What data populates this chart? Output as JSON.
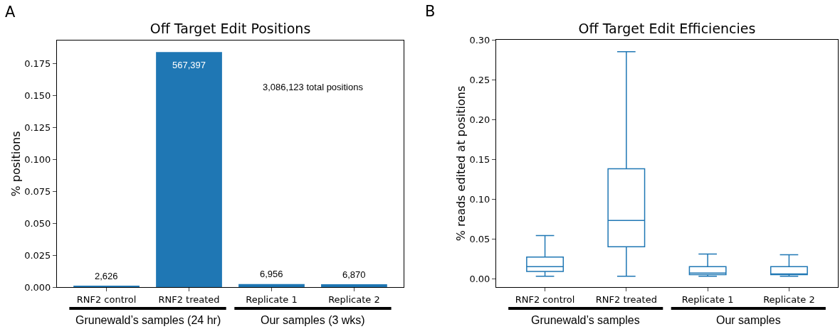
{
  "chart_data": [
    {
      "type": "bar",
      "title": "Off Target Edit Positions",
      "ylabel": "% positions",
      "categories": [
        "RNF2 control",
        "RNF2 treated",
        "Replicate 1",
        "Replicate 2"
      ],
      "values": [
        0.0009,
        0.184,
        0.0023,
        0.0022
      ],
      "color": "#1f77b4",
      "ylim": [
        0,
        0.193
      ],
      "yticks": [
        {
          "value": 0,
          "label": "0.000"
        },
        {
          "value": 0.025,
          "label": "0.025"
        },
        {
          "value": 0.05,
          "label": "0.050"
        },
        {
          "value": 0.075,
          "label": "0.075"
        },
        {
          "value": 0.1,
          "label": "0.100"
        },
        {
          "value": 0.125,
          "label": "0.125"
        },
        {
          "value": 0.15,
          "label": "0.150"
        },
        {
          "value": 0.175,
          "label": "0.175"
        }
      ],
      "grid": false,
      "annotations": [
        "A",
        "3,086,123 total positions",
        "Grunewald’s samples (24 hr)",
        "Our samples (3 wks)",
        {
          "text": "2,626",
          "x": "RNF2 control",
          "y": 0.0009
        },
        {
          "text": "567,397",
          "x": "RNF2 treated",
          "y": 0.184
        },
        {
          "text": "6,956",
          "x": "Replicate 1",
          "y": 0.0023
        },
        {
          "text": "6,870",
          "x": "Replicate 2",
          "y": 0.0022
        }
      ]
    },
    {
      "type": "box",
      "title": "Off Target Edit Efficiencies",
      "ylabel": "% reads edited at positions",
      "categories": [
        "RNF2 control",
        "RNF2 treated",
        "Replicate 1",
        "Replicate 2"
      ],
      "color": "#1f77b4",
      "boxes": [
        {
          "low": 0.003,
          "q1": 0.009,
          "median": 0.015,
          "q3": 0.027,
          "high": 0.054
        },
        {
          "low": 0.003,
          "q1": 0.04,
          "median": 0.073,
          "q3": 0.138,
          "high": 0.285
        },
        {
          "low": 0.003,
          "q1": 0.005,
          "median": 0.007,
          "q3": 0.015,
          "high": 0.031
        },
        {
          "low": 0.003,
          "q1": 0.005,
          "median": 0.006,
          "q3": 0.015,
          "high": 0.03
        }
      ],
      "ylim": [
        -0.0106,
        0.3
      ],
      "yticks": [
        {
          "value": 0,
          "label": "0.00"
        },
        {
          "value": 0.05,
          "label": "0.05"
        },
        {
          "value": 0.1,
          "label": "0.10"
        },
        {
          "value": 0.15,
          "label": "0.15"
        },
        {
          "value": 0.2,
          "label": "0.20"
        },
        {
          "value": 0.25,
          "label": "0.25"
        },
        {
          "value": 0.3,
          "label": "0.30"
        }
      ],
      "grid": false,
      "annotations": [
        "B",
        "Grunewald’s samples",
        "Our samples"
      ]
    }
  ]
}
